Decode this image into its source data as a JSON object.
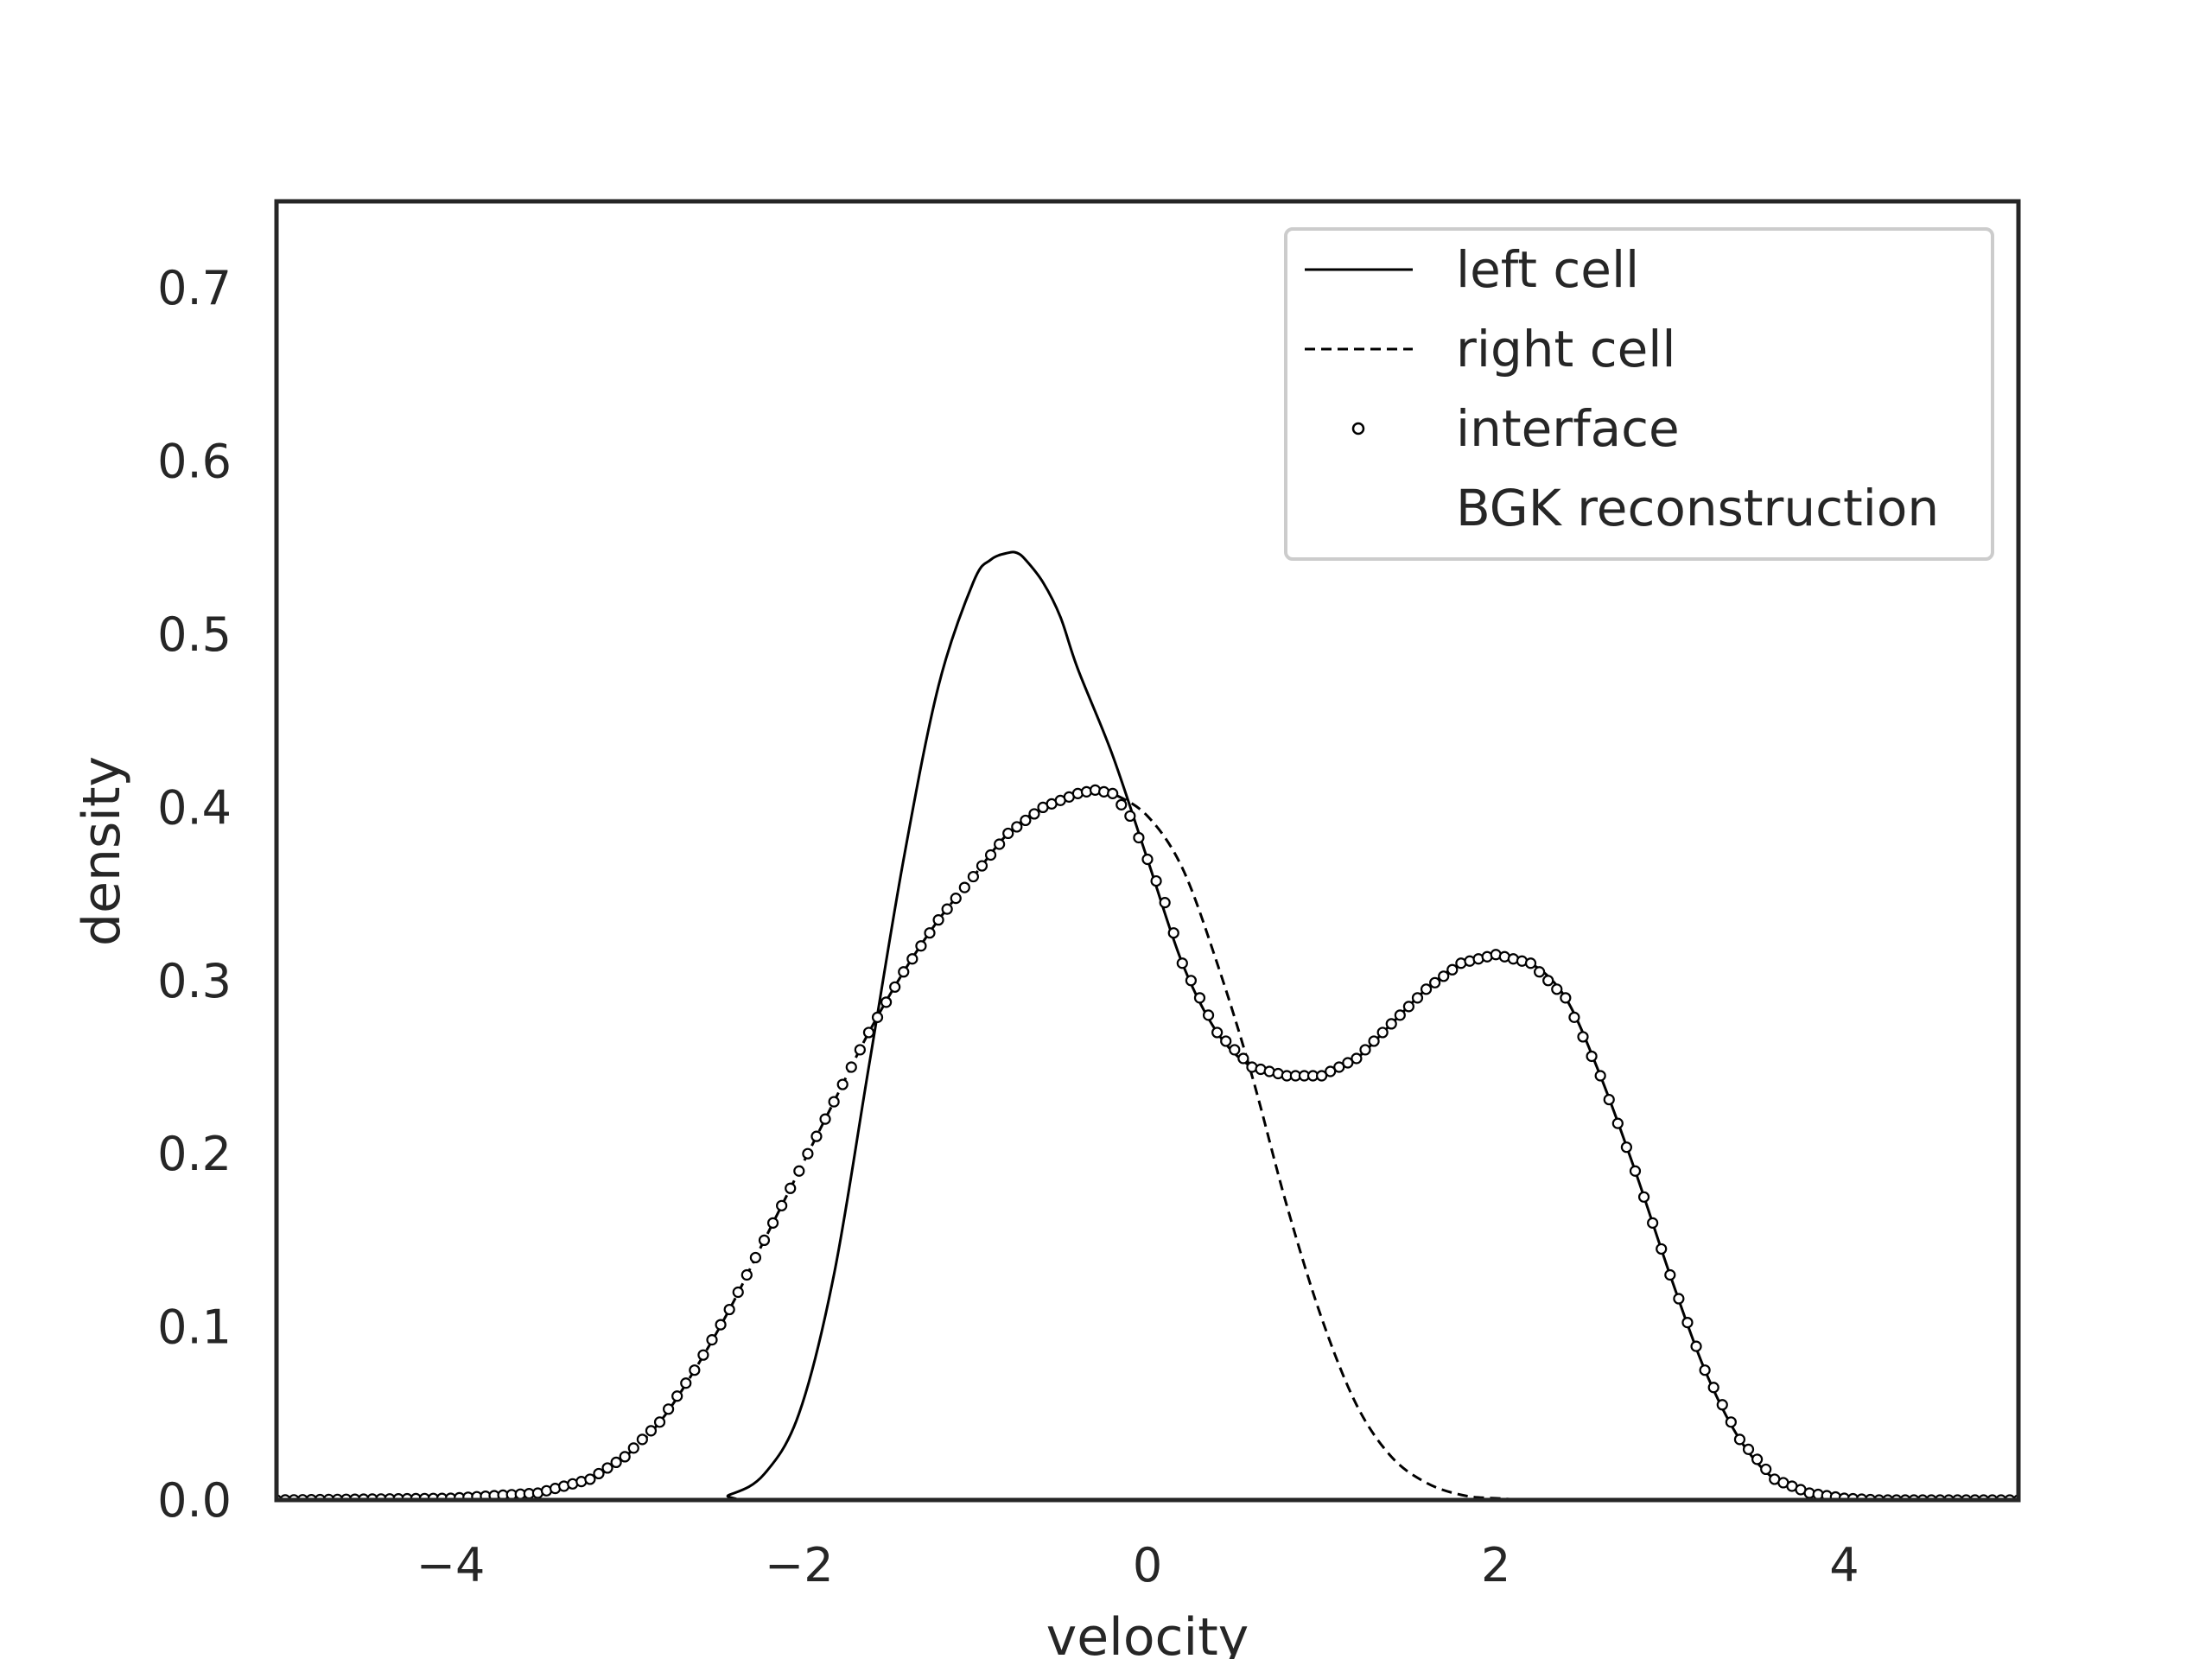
{
  "chart_data": {
    "type": "line",
    "title": "",
    "xlabel": "velocity",
    "ylabel": "density",
    "xlim": [
      -5,
      5
    ],
    "ylim": [
      0,
      0.75
    ],
    "xticks": [
      -4,
      -2,
      0,
      2,
      4
    ],
    "xtick_labels": [
      "−4",
      "−2",
      "0",
      "2",
      "4"
    ],
    "yticks": [
      0.0,
      0.1,
      0.2,
      0.3,
      0.4,
      0.5,
      0.6,
      0.7
    ],
    "ytick_labels": [
      "0.0",
      "0.1",
      "0.2",
      "0.3",
      "0.4",
      "0.5",
      "0.6",
      "0.7"
    ],
    "grid": false,
    "legend_position": "top-right",
    "series": [
      {
        "name": "left cell",
        "style": "solid",
        "x": [
          -5.0,
          -2.6,
          -2.4,
          -2.2,
          -2.0,
          -1.8,
          -1.6,
          -1.4,
          -1.2,
          -1.0,
          -0.9,
          -0.8,
          -0.75,
          -0.7,
          -0.6,
          -0.5,
          -0.4,
          -0.2,
          0.0,
          0.2,
          0.4,
          0.6,
          0.8,
          1.0,
          1.2,
          1.4,
          1.6,
          1.8,
          2.0,
          2.2,
          2.4,
          2.6,
          2.8,
          3.0,
          3.2,
          3.4,
          3.6,
          3.8,
          4.0,
          4.2,
          4.5,
          5.0
        ],
        "y": [
          0.0,
          0.0,
          0.003,
          0.015,
          0.05,
          0.13,
          0.25,
          0.37,
          0.47,
          0.53,
          0.543,
          0.547,
          0.547,
          0.543,
          0.53,
          0.51,
          0.48,
          0.43,
          0.37,
          0.31,
          0.27,
          0.25,
          0.245,
          0.245,
          0.255,
          0.275,
          0.295,
          0.31,
          0.315,
          0.31,
          0.29,
          0.245,
          0.19,
          0.13,
          0.075,
          0.035,
          0.012,
          0.004,
          0.001,
          0.0,
          0.0,
          0.0
        ]
      },
      {
        "name": "right cell",
        "style": "dashed",
        "x": [
          -5.0,
          -4.0,
          -3.5,
          -3.2,
          -3.0,
          -2.8,
          -2.6,
          -2.4,
          -2.2,
          -2.0,
          -1.8,
          -1.6,
          -1.4,
          -1.2,
          -1.0,
          -0.8,
          -0.6,
          -0.4,
          -0.3,
          -0.2,
          0.0,
          0.2,
          0.4,
          0.6,
          0.8,
          1.0,
          1.2,
          1.4,
          1.6,
          1.8,
          2.0,
          2.5,
          5.0
        ],
        "y": [
          0.0,
          0.001,
          0.004,
          0.012,
          0.025,
          0.045,
          0.075,
          0.11,
          0.15,
          0.19,
          0.23,
          0.27,
          0.305,
          0.335,
          0.36,
          0.385,
          0.4,
          0.408,
          0.41,
          0.408,
          0.395,
          0.365,
          0.31,
          0.245,
          0.17,
          0.105,
          0.055,
          0.025,
          0.01,
          0.003,
          0.001,
          0.0,
          0.0
        ]
      },
      {
        "name": "interface",
        "style": "markers",
        "x": [
          -5.0,
          -4.0,
          -3.5,
          -3.2,
          -3.0,
          -2.8,
          -2.6,
          -2.4,
          -2.2,
          -2.0,
          -1.8,
          -1.6,
          -1.4,
          -1.2,
          -1.0,
          -0.8,
          -0.6,
          -0.4,
          -0.3,
          -0.2,
          -0.1,
          0.0,
          0.1,
          0.2,
          0.4,
          0.6,
          0.8,
          1.0,
          1.2,
          1.4,
          1.6,
          1.8,
          2.0,
          2.2,
          2.4,
          2.6,
          2.8,
          3.0,
          3.2,
          3.4,
          3.6,
          3.8,
          4.0,
          4.2,
          4.5,
          5.0
        ],
        "y": [
          0.0,
          0.001,
          0.004,
          0.012,
          0.025,
          0.045,
          0.075,
          0.11,
          0.15,
          0.19,
          0.23,
          0.27,
          0.305,
          0.335,
          0.36,
          0.385,
          0.4,
          0.408,
          0.41,
          0.408,
          0.395,
          0.37,
          0.345,
          0.31,
          0.27,
          0.25,
          0.245,
          0.245,
          0.255,
          0.275,
          0.295,
          0.31,
          0.315,
          0.31,
          0.29,
          0.245,
          0.19,
          0.13,
          0.075,
          0.035,
          0.012,
          0.004,
          0.001,
          0.0,
          0.0,
          0.0
        ]
      }
    ],
    "legend": [
      {
        "label": "left cell",
        "style": "solid"
      },
      {
        "label": "right cell",
        "style": "dashed"
      },
      {
        "label": "interface",
        "style": "markers"
      },
      {
        "label": "BGK reconstruction",
        "style": "none"
      }
    ],
    "colors": {
      "line": "#000000",
      "frame": "#262626",
      "text": "#262626",
      "background": "#ffffff"
    }
  }
}
